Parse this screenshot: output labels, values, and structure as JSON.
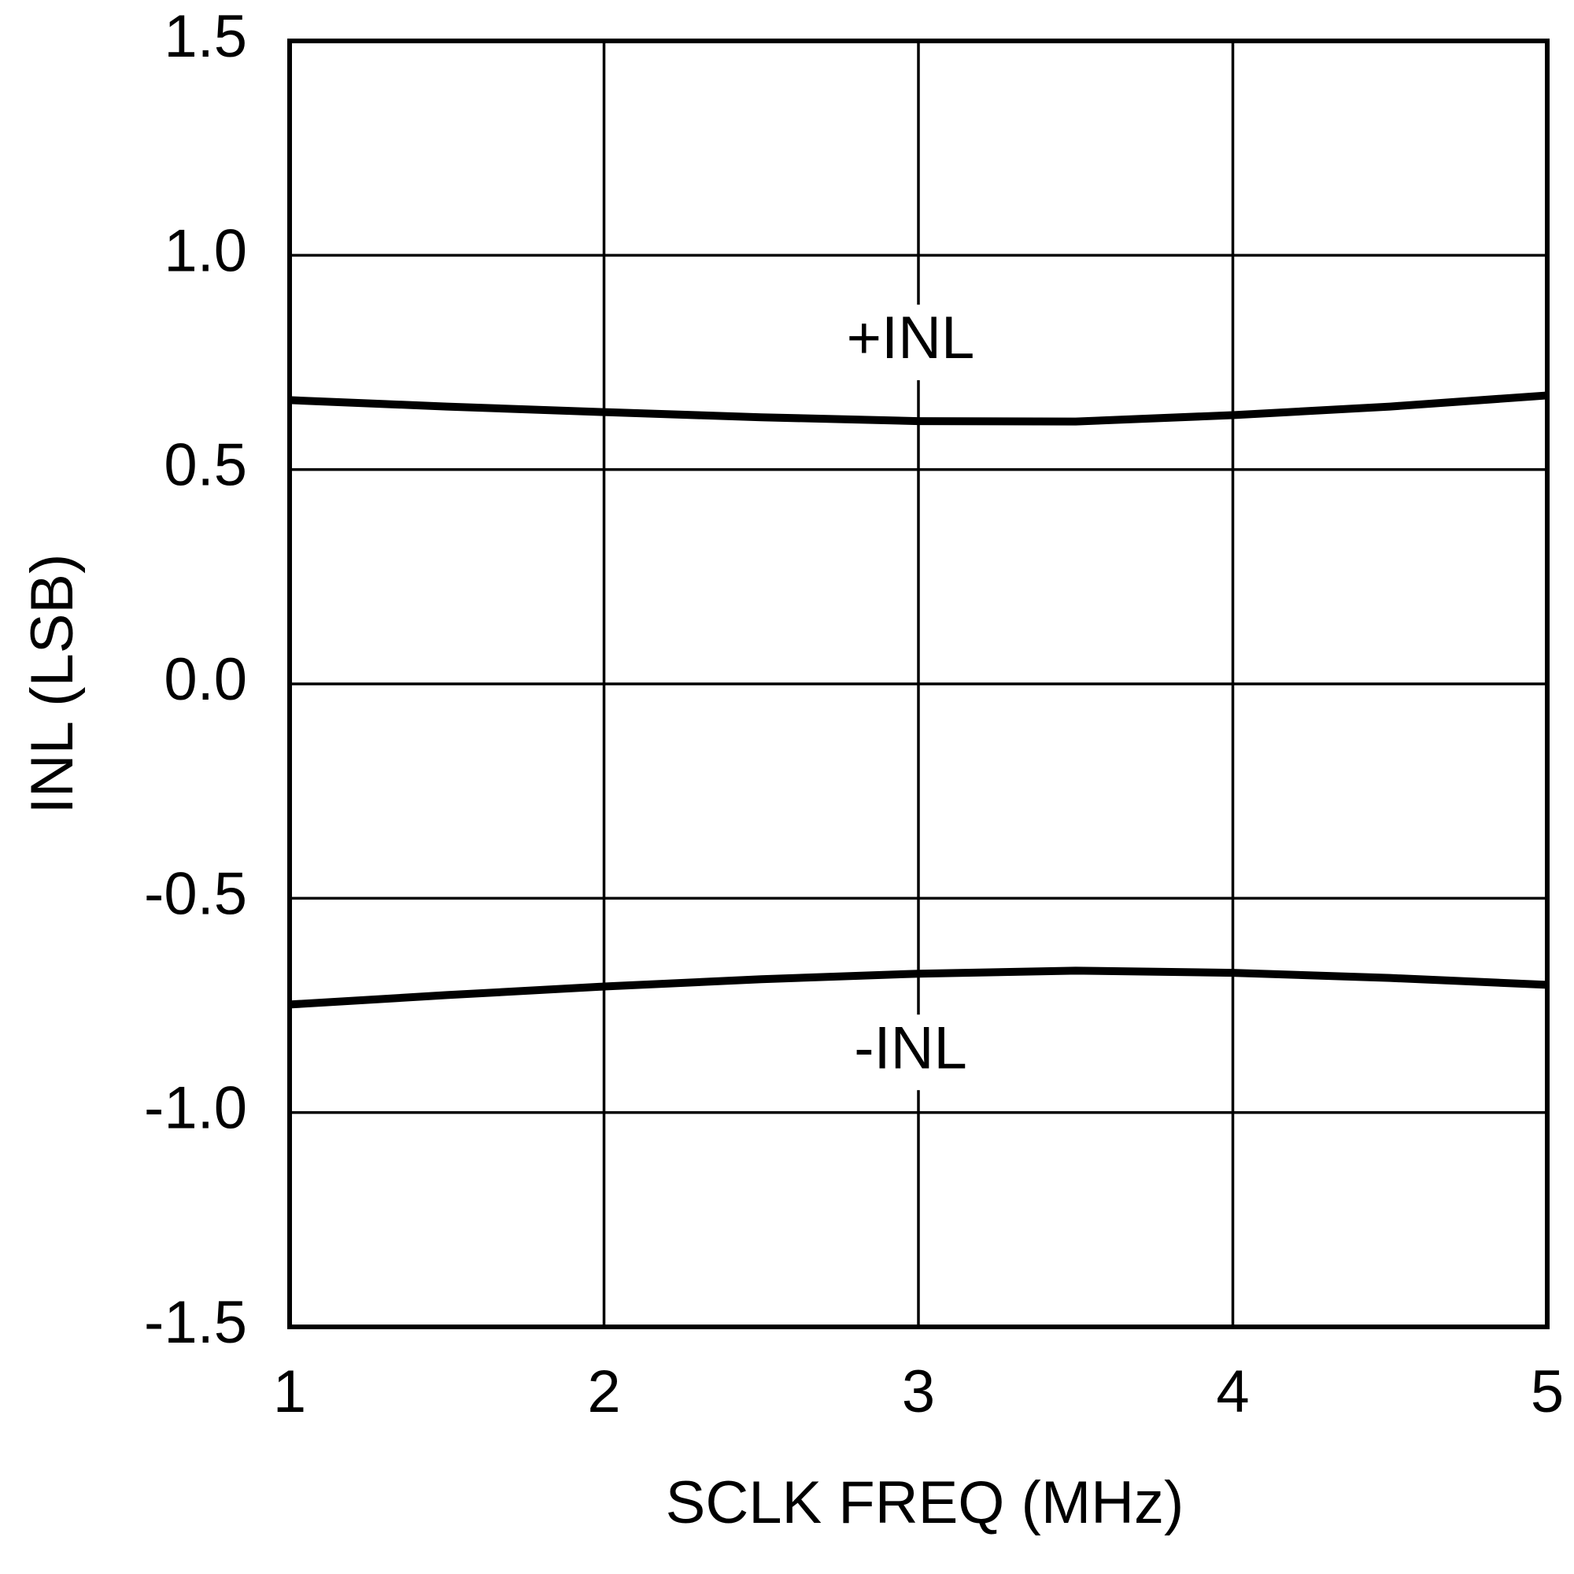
{
  "chart_data": {
    "type": "line",
    "x_label": "SCLK FREQ (MHz)",
    "y_label": "INL (LSB)",
    "x": [
      1,
      1.5,
      2,
      2.5,
      3,
      3.5,
      4,
      4.5,
      5
    ],
    "series": [
      {
        "name": "+INL",
        "color": "#000000",
        "values": [
          0.662,
          0.647,
          0.634,
          0.622,
          0.613,
          0.612,
          0.627,
          0.647,
          0.673
        ]
      },
      {
        "name": "-INL",
        "color": "#000000",
        "values": [
          -0.748,
          -0.726,
          -0.706,
          -0.689,
          -0.676,
          -0.669,
          -0.674,
          -0.686,
          -0.702
        ]
      }
    ],
    "xlim": [
      1,
      5
    ],
    "ylim": [
      -1.5,
      1.5
    ],
    "xticks": [
      1,
      2,
      3,
      4,
      5
    ],
    "yticks": [
      -1.5,
      {
        "value": -1.0,
        "label": "-1.0"
      },
      -0.5,
      {
        "value": 0.0,
        "label": "0.0"
      },
      0.5,
      {
        "value": 1.0,
        "label": "1.0"
      },
      1.5
    ],
    "grid": true
  }
}
